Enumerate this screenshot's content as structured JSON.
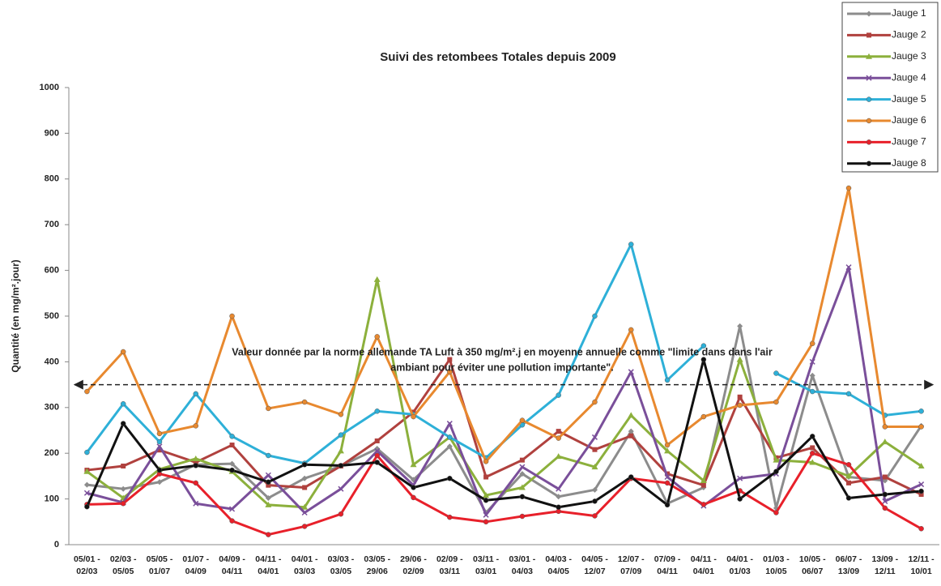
{
  "chart_data": {
    "type": "line",
    "title": "Suivi des retombees Totales depuis 2009",
    "y_label": "Quantité (en mg/m².jour)",
    "annotation": [
      "Valeur donnée par la norme allemande TA Luft à 350 mg/m².j en moyenne annuelle comme \"limite dans dans l'air",
      "ambiant pour éviter une pollution importante\"."
    ],
    "reference_line": 350,
    "categories": [
      "05/01 - 02/03",
      "02/03 - 05/05",
      "05/05 - 01/07",
      "01/07 - 04/09",
      "04/09 - 04/11",
      "04/11 - 04/01",
      "04/01 - 03/03",
      "03/03 - 03/05",
      "03/05 - 29/06",
      "29/06 - 02/09",
      "02/09 - 03/11",
      "03/11 - 03/01",
      "03/01 - 04/03",
      "04/03 - 04/05",
      "04/05 - 12/07",
      "12/07 - 07/09",
      "07/09 - 04/11",
      "04/11 - 04/01",
      "04/01 - 01/03",
      "01/03 - 10/05",
      "10/05 - 06/07",
      "06/07 - 13/09",
      "13/09 - 12/11",
      "12/11 - 10/01"
    ],
    "series": [
      {
        "name": "Jauge 1",
        "color": "#8c8c8c",
        "marker": "diamond",
        "values": [
          131,
          122,
          137,
          175,
          177,
          102,
          145,
          172,
          210,
          142,
          215,
          70,
          155,
          105,
          120,
          248,
          90,
          125,
          478,
          80,
          370,
          148,
          140,
          260
        ]
      },
      {
        "name": "Jauge 2",
        "color": "#b0413e",
        "marker": "square",
        "values": [
          163,
          172,
          207,
          180,
          218,
          130,
          125,
          172,
          227,
          290,
          405,
          148,
          185,
          248,
          208,
          238,
          155,
          130,
          323,
          190,
          212,
          135,
          148,
          110
        ]
      },
      {
        "name": "Jauge 3",
        "color": "#8cb03c",
        "marker": "triangle",
        "values": [
          160,
          102,
          165,
          188,
          160,
          87,
          82,
          205,
          580,
          175,
          235,
          108,
          125,
          193,
          170,
          283,
          205,
          140,
          405,
          185,
          180,
          150,
          225,
          172
        ]
      },
      {
        "name": "Jauge 4",
        "color": "#7a4f9a",
        "marker": "x",
        "values": [
          113,
          92,
          215,
          90,
          78,
          152,
          70,
          122,
          205,
          130,
          265,
          65,
          170,
          122,
          235,
          378,
          148,
          85,
          145,
          155,
          400,
          607,
          95,
          132
        ]
      },
      {
        "name": "Jauge 5",
        "color": "#2eb0d8",
        "marker": "circle",
        "values": [
          202,
          308,
          225,
          330,
          237,
          195,
          178,
          240,
          292,
          285,
          235,
          190,
          262,
          327,
          500,
          657,
          360,
          435,
          null,
          375,
          335,
          330,
          283,
          292
        ]
      },
      {
        "name": "Jauge 6",
        "color": "#e8892f",
        "marker": "circle",
        "values": [
          335,
          422,
          243,
          260,
          500,
          298,
          312,
          285,
          455,
          280,
          378,
          182,
          272,
          233,
          312,
          470,
          218,
          280,
          305,
          312,
          440,
          780,
          258,
          258
        ]
      },
      {
        "name": "Jauge 7",
        "color": "#e8202a",
        "marker": "circle",
        "values": [
          88,
          90,
          155,
          135,
          52,
          22,
          40,
          67,
          195,
          103,
          60,
          50,
          62,
          73,
          63,
          145,
          135,
          88,
          118,
          70,
          200,
          175,
          80,
          35
        ]
      },
      {
        "name": "Jauge 8",
        "color": "#111111",
        "marker": "circle",
        "values": [
          83,
          265,
          163,
          173,
          163,
          137,
          175,
          173,
          180,
          125,
          145,
          97,
          105,
          82,
          95,
          148,
          87,
          405,
          100,
          160,
          237,
          102,
          110,
          117
        ]
      }
    ],
    "ylim": [
      0,
      1000
    ],
    "yticks": [
      0,
      100,
      200,
      300,
      400,
      500,
      600,
      700,
      800,
      900,
      1000
    ],
    "grid": false,
    "legend": "top-right"
  }
}
